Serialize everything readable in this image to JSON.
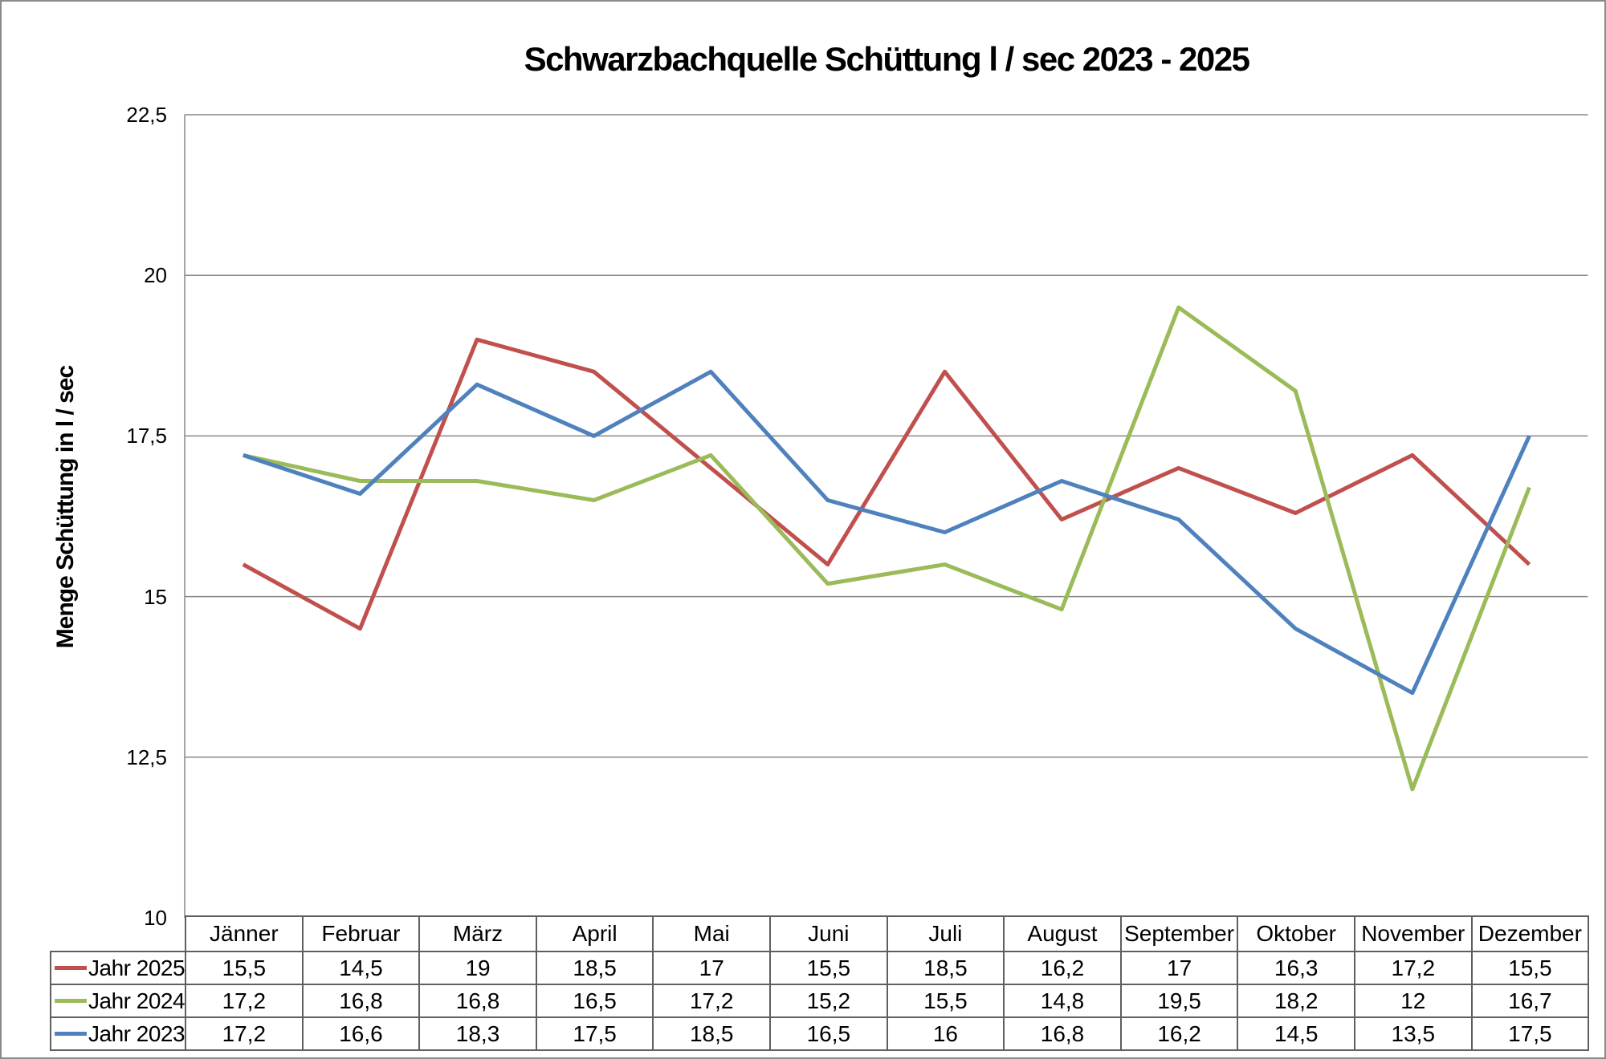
{
  "chart_data": {
    "type": "line",
    "title": "Schwarzbachquelle Schüttung l / sec 2023 - 2025",
    "ylabel": "Menge Schüttung in l / sec",
    "categories": [
      "Jänner",
      "Februar",
      "März",
      "April",
      "Mai",
      "Juni",
      "Juli",
      "August",
      "September",
      "Oktober",
      "November",
      "Dezember"
    ],
    "series": [
      {
        "name": "Jahr 2025",
        "color": "#C0504D",
        "values": [
          15.5,
          14.5,
          19,
          18.5,
          17,
          15.5,
          18.5,
          16.2,
          17,
          16.3,
          17.2,
          15.5
        ]
      },
      {
        "name": "Jahr 2024",
        "color": "#9BBB59",
        "values": [
          17.2,
          16.8,
          16.8,
          16.5,
          17.2,
          15.2,
          15.5,
          14.8,
          19.5,
          18.2,
          12,
          16.7
        ]
      },
      {
        "name": "Jahr 2023",
        "color": "#4F81BD",
        "values": [
          17.2,
          16.6,
          18.3,
          17.5,
          18.5,
          16.5,
          16,
          16.8,
          16.2,
          14.5,
          13.5,
          17.5
        ]
      }
    ],
    "ylim": [
      10,
      22.5
    ],
    "yticks": [
      22.5,
      20,
      17.5,
      15,
      12.5,
      10
    ],
    "decimal_separator": ",",
    "grid": true,
    "legend_position": "data-table-row-headers"
  },
  "colors": {
    "background": "#FFFFFF",
    "text": "#000000",
    "grid": "#878787",
    "axis": "#878787",
    "table_border": "#5F5F5F",
    "frame_border": "#8A8A8A",
    "series_red": "#C0504D",
    "series_green": "#9BBB59",
    "series_blue": "#4F81BD"
  }
}
